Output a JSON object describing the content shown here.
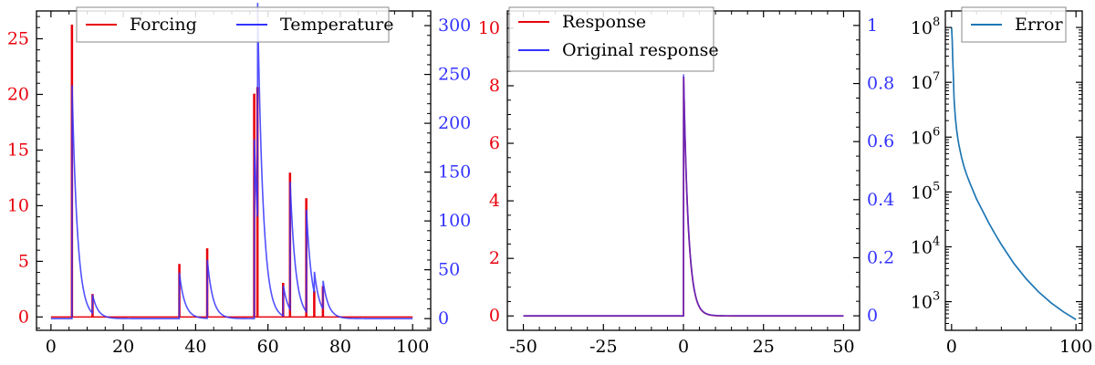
{
  "colors": {
    "red": "#e8000b",
    "blue": "#3333ff",
    "overlap": "#6a0dad",
    "steel": "#1f77b4"
  },
  "chart_data": [
    {
      "type": "line",
      "title": "",
      "xlabel": "",
      "ylabel_left": "",
      "ylabel_right": "",
      "xlim": [
        -4,
        105
      ],
      "ylim_left": [
        -1.2,
        27.5
      ],
      "ylim_right": [
        -12,
        315
      ],
      "xticks": [
        0,
        20,
        40,
        60,
        80,
        100
      ],
      "yticks_left": [
        0,
        5,
        10,
        15,
        20,
        25
      ],
      "yticks_right": [
        0,
        50,
        100,
        150,
        200,
        250,
        300
      ],
      "legend": {
        "placement": "top",
        "entries": [
          "Forcing",
          "Temperature"
        ]
      },
      "series": [
        {
          "name": "Forcing",
          "axis": "left",
          "color": "#e8000b",
          "kind": "spikes",
          "baseline": 0,
          "pulses": [
            {
              "x": 5.8,
              "y": 26.2
            },
            {
              "x": 11.5,
              "y": 2.0
            },
            {
              "x": 35.5,
              "y": 4.7
            },
            {
              "x": 43.2,
              "y": 6.1
            },
            {
              "x": 56.2,
              "y": 20.0
            },
            {
              "x": 57.1,
              "y": 20.6
            },
            {
              "x": 64.2,
              "y": 3.0
            },
            {
              "x": 66.1,
              "y": 12.9
            },
            {
              "x": 70.6,
              "y": 10.6
            },
            {
              "x": 72.8,
              "y": 2.3
            },
            {
              "x": 75.2,
              "y": 2.7
            }
          ]
        },
        {
          "name": "Temperature",
          "axis": "right",
          "color": "#3333ff",
          "kind": "decaying_impulses",
          "x_range": [
            0,
            100
          ],
          "baseline": 0,
          "decay_time": 1.5,
          "impulses": [
            {
              "x": 5.8,
              "y": 247
            },
            {
              "x": 11.5,
              "y": 19
            },
            {
              "x": 35.5,
              "y": 47
            },
            {
              "x": 43.2,
              "y": 62
            },
            {
              "x": 56.2,
              "y": 190
            },
            {
              "x": 57.1,
              "y": 230
            },
            {
              "x": 64.2,
              "y": 32
            },
            {
              "x": 66.1,
              "y": 135
            },
            {
              "x": 70.6,
              "y": 108
            },
            {
              "x": 72.8,
              "y": 23
            },
            {
              "x": 75.2,
              "y": 30
            }
          ]
        }
      ]
    },
    {
      "type": "line",
      "title": "",
      "xlabel": "",
      "ylabel_left": "",
      "ylabel_right": "",
      "xlim": [
        -55,
        55
      ],
      "ylim_left": [
        -0.5,
        10.6
      ],
      "ylim_right": [
        -0.05,
        1.05
      ],
      "xticks": [
        -50,
        -25,
        0,
        25,
        50
      ],
      "yticks_left": [
        0,
        2,
        4,
        6,
        8,
        10
      ],
      "yticks_right": [
        0.0,
        0.2,
        0.4,
        0.6,
        0.8,
        1.0
      ],
      "legend": {
        "placement": "top-left",
        "entries": [
          "Response",
          "Original response"
        ]
      },
      "series": [
        {
          "name": "Response",
          "axis": "left",
          "color": "#e8000b",
          "kind": "one_sided_exponential",
          "x_range": [
            -50,
            50
          ],
          "peak_x": 0,
          "peak_y": 8.6,
          "decay_time": 1.5
        },
        {
          "name": "Original response",
          "axis": "right",
          "color": "#3333ff",
          "kind": "one_sided_exponential",
          "x_range": [
            -50,
            50
          ],
          "peak_x": 0,
          "peak_y": 0.86,
          "decay_time": 1.5
        }
      ]
    },
    {
      "type": "line",
      "title": "",
      "xlabel": "",
      "ylabel": "",
      "yscale": "log",
      "xlim": [
        -5,
        105
      ],
      "ylim": [
        300,
        200000000
      ],
      "xticks": [
        0,
        100
      ],
      "yticks": [
        1000,
        10000,
        100000,
        1000000,
        10000000,
        100000000
      ],
      "ytick_labels": [
        {
          "base": "10",
          "exp": "3"
        },
        {
          "base": "10",
          "exp": "4"
        },
        {
          "base": "10",
          "exp": "5"
        },
        {
          "base": "10",
          "exp": "6"
        },
        {
          "base": "10",
          "exp": "7"
        },
        {
          "base": "10",
          "exp": "8"
        }
      ],
      "legend": {
        "placement": "top-right",
        "entries": [
          "Error"
        ]
      },
      "series": [
        {
          "name": "Error",
          "color": "#1f77b4",
          "points": [
            [
              0,
              100000000
            ],
            [
              0.5,
              60000000
            ],
            [
              1,
              24000000
            ],
            [
              1.5,
              12000000
            ],
            [
              2,
              5000000
            ],
            [
              3,
              2300000
            ],
            [
              4,
              1400000
            ],
            [
              5,
              950000
            ],
            [
              6,
              700000
            ],
            [
              8,
              430000
            ],
            [
              10,
              290000
            ],
            [
              12,
              210000
            ],
            [
              15,
              140000
            ],
            [
              20,
              75000
            ],
            [
              25,
              45000
            ],
            [
              30,
              27000
            ],
            [
              35,
              17000
            ],
            [
              40,
              11000
            ],
            [
              50,
              5000
            ],
            [
              60,
              2600
            ],
            [
              70,
              1500
            ],
            [
              80,
              950
            ],
            [
              90,
              650
            ],
            [
              100,
              470
            ]
          ]
        }
      ]
    }
  ]
}
